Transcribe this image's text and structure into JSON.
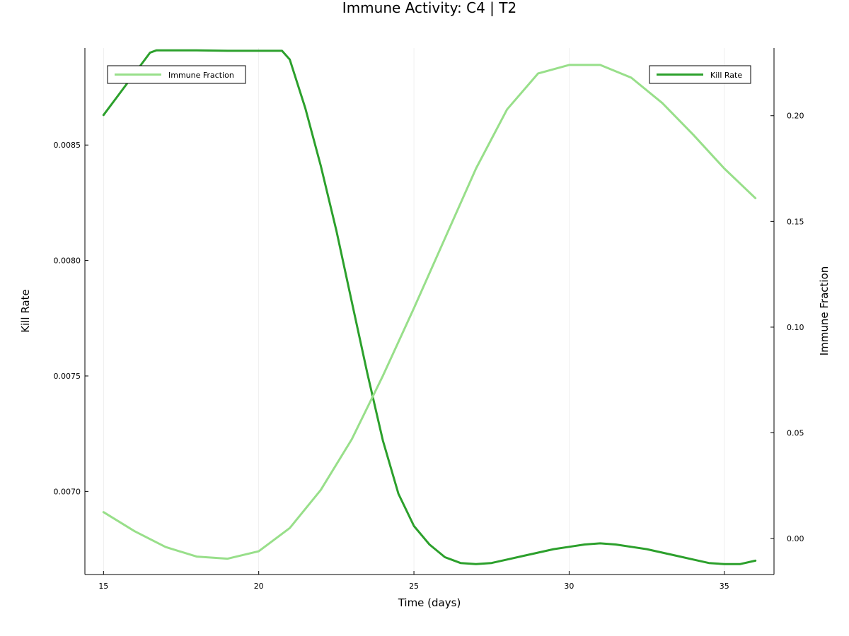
{
  "chart_data": {
    "type": "line",
    "title": "Immune Activity: C4 | T2",
    "xlabel": "Time (days)",
    "ylabel_left": "Kill Rate",
    "ylabel_right": "Immune Fraction",
    "xlim": [
      14.4,
      36.6
    ],
    "ylim_left": [
      0.00664,
      0.00892
    ],
    "ylim_right": [
      -0.017,
      0.232
    ],
    "x_ticks": [
      15,
      20,
      25,
      30,
      35
    ],
    "y_left_ticks": [
      0.007,
      0.0075,
      0.008,
      0.0085
    ],
    "y_right_ticks": [
      0.0,
      0.05,
      0.1,
      0.15,
      0.2
    ],
    "grid": "x-only",
    "colors": {
      "kill_rate": "#2ca02c",
      "immune_fraction": "#98df8a"
    },
    "series": [
      {
        "name": "Kill Rate",
        "axis": "left",
        "color": "#2ca02c",
        "x": [
          15,
          15.5,
          16,
          16.5,
          16.7,
          17,
          18,
          19,
          20,
          20.5,
          20.75,
          21,
          21.5,
          22,
          22.5,
          23,
          23.5,
          24,
          24.5,
          25,
          25.5,
          26,
          26.5,
          27,
          27.5,
          28,
          28.5,
          29,
          29.5,
          30,
          30.5,
          31,
          31.5,
          32,
          32.5,
          33,
          33.5,
          34,
          34.5,
          35,
          35.5,
          36
        ],
        "y": [
          0.00863,
          0.00872,
          0.00881,
          0.0089,
          0.00891,
          0.00891,
          0.00891,
          0.008908,
          0.008908,
          0.008908,
          0.008908,
          0.00887,
          0.00866,
          0.00841,
          0.00813,
          0.00782,
          0.00751,
          0.00722,
          0.00699,
          0.00685,
          0.00677,
          0.006715,
          0.00669,
          0.006685,
          0.00669,
          0.006705,
          0.00672,
          0.006735,
          0.00675,
          0.00676,
          0.00677,
          0.006775,
          0.00677,
          0.00676,
          0.00675,
          0.006735,
          0.00672,
          0.006705,
          0.00669,
          0.006685,
          0.006685,
          0.0067
        ]
      },
      {
        "name": "Immune Fraction",
        "axis": "right",
        "color": "#98df8a",
        "x": [
          15,
          16,
          17,
          18,
          19,
          20,
          21,
          22,
          23,
          24,
          25,
          26,
          27,
          28,
          29,
          30,
          31,
          32,
          33,
          34,
          35,
          36
        ],
        "y": [
          0.0125,
          0.0035,
          -0.004,
          -0.0085,
          -0.0095,
          -0.006,
          0.005,
          0.023,
          0.047,
          0.077,
          0.109,
          0.142,
          0.175,
          0.203,
          0.22,
          0.224,
          0.224,
          0.218,
          0.206,
          0.191,
          0.175,
          0.161
        ]
      }
    ],
    "legends": [
      {
        "label": "Immune Fraction",
        "placement": "top-left",
        "color": "#98df8a"
      },
      {
        "label": "Kill Rate",
        "placement": "top-right",
        "color": "#2ca02c"
      }
    ]
  }
}
